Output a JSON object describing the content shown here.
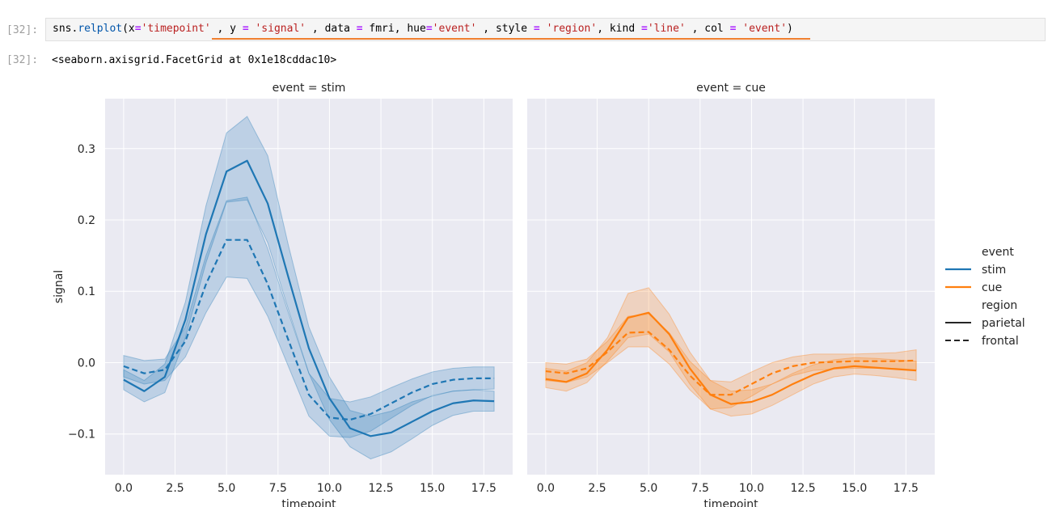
{
  "cell": {
    "in_prompt": "[32]:",
    "code_tokens": [
      {
        "t": "sns",
        "c": "plain"
      },
      {
        "t": ".",
        "c": "plain"
      },
      {
        "t": "relplot",
        "c": "var"
      },
      {
        "t": "(x",
        "c": "plain"
      },
      {
        "t": "=",
        "c": "op"
      },
      {
        "t": "'timepoint'",
        "c": "str"
      },
      {
        "t": " , y ",
        "c": "plain"
      },
      {
        "t": "=",
        "c": "op"
      },
      {
        "t": " ",
        "c": "plain"
      },
      {
        "t": "'signal'",
        "c": "str"
      },
      {
        "t": " , data ",
        "c": "plain"
      },
      {
        "t": "=",
        "c": "op"
      },
      {
        "t": " fmri, hue",
        "c": "plain"
      },
      {
        "t": "=",
        "c": "op"
      },
      {
        "t": "'event'",
        "c": "str"
      },
      {
        "t": " , style ",
        "c": "plain"
      },
      {
        "t": "=",
        "c": "op"
      },
      {
        "t": " ",
        "c": "plain"
      },
      {
        "t": "'region'",
        "c": "str"
      },
      {
        "t": ", kind ",
        "c": "plain"
      },
      {
        "t": "=",
        "c": "op"
      },
      {
        "t": "'line'",
        "c": "str"
      },
      {
        "t": " , col ",
        "c": "plain"
      },
      {
        "t": "=",
        "c": "op"
      },
      {
        "t": " ",
        "c": "plain"
      },
      {
        "t": "'event'",
        "c": "str"
      },
      {
        "t": ")",
        "c": "plain"
      }
    ],
    "out_prompt": "[32]:",
    "output_text": "<seaborn.axisgrid.FacetGrid at 0x1e18cddac10>"
  },
  "colors": {
    "stim": "#1f77b4",
    "cue": "#ff7f0e",
    "axes_bg": "#eaeaf2",
    "grid": "#ffffff"
  },
  "chart_data": [
    {
      "type": "line",
      "title": "event = stim",
      "xlabel": "timepoint",
      "ylabel": "signal",
      "xlim": [
        -0.9,
        18.9
      ],
      "ylim": [
        -0.157,
        0.37
      ],
      "xticks": [
        "0.0",
        "2.5",
        "5.0",
        "7.5",
        "10.0",
        "12.5",
        "15.0",
        "17.5"
      ],
      "yticks": [
        "0.3",
        "0.2",
        "0.1",
        "0.0",
        "−0.1"
      ],
      "grid": true,
      "x": [
        0,
        1,
        2,
        3,
        4,
        5,
        6,
        7,
        8,
        9,
        10,
        11,
        12,
        13,
        14,
        15,
        16,
        17,
        18
      ],
      "series": [
        {
          "event": "stim",
          "region": "parietal",
          "values": [
            -0.024,
            -0.04,
            -0.02,
            0.06,
            0.18,
            0.268,
            0.283,
            0.223,
            0.12,
            0.02,
            -0.05,
            -0.092,
            -0.103,
            -0.098,
            -0.083,
            -0.068,
            -0.057,
            -0.053,
            -0.054
          ],
          "ci_low": [
            -0.038,
            -0.055,
            -0.042,
            0.035,
            0.14,
            0.225,
            0.228,
            0.168,
            0.075,
            -0.015,
            -0.08,
            -0.118,
            -0.135,
            -0.125,
            -0.107,
            -0.088,
            -0.074,
            -0.068,
            -0.068
          ],
          "ci_high": [
            -0.01,
            -0.025,
            -0.002,
            0.085,
            0.22,
            0.322,
            0.345,
            0.29,
            0.165,
            0.05,
            -0.02,
            -0.067,
            -0.075,
            -0.068,
            -0.055,
            -0.047,
            -0.04,
            -0.038,
            -0.04
          ]
        },
        {
          "event": "stim",
          "region": "frontal",
          "values": [
            -0.005,
            -0.015,
            -0.01,
            0.03,
            0.11,
            0.172,
            0.172,
            0.11,
            0.032,
            -0.045,
            -0.077,
            -0.08,
            -0.072,
            -0.057,
            -0.042,
            -0.03,
            -0.024,
            -0.022,
            -0.022
          ],
          "ci_low": [
            -0.02,
            -0.03,
            -0.025,
            0.008,
            0.07,
            0.12,
            0.118,
            0.065,
            -0.005,
            -0.075,
            -0.103,
            -0.105,
            -0.096,
            -0.078,
            -0.06,
            -0.046,
            -0.04,
            -0.038,
            -0.037
          ],
          "ci_high": [
            0.01,
            0.003,
            0.005,
            0.05,
            0.15,
            0.227,
            0.232,
            0.16,
            0.07,
            -0.015,
            -0.05,
            -0.055,
            -0.048,
            -0.035,
            -0.023,
            -0.013,
            -0.008,
            -0.006,
            -0.006
          ]
        }
      ]
    },
    {
      "type": "line",
      "title": "event = cue",
      "xlabel": "timepoint",
      "ylabel": "",
      "xlim": [
        -0.9,
        18.9
      ],
      "ylim": [
        -0.157,
        0.37
      ],
      "xticks": [
        "0.0",
        "2.5",
        "5.0",
        "7.5",
        "10.0",
        "12.5",
        "15.0",
        "17.5"
      ],
      "yticks": [],
      "grid": true,
      "x": [
        0,
        1,
        2,
        3,
        4,
        5,
        6,
        7,
        8,
        9,
        10,
        11,
        12,
        13,
        14,
        15,
        16,
        17,
        18
      ],
      "series": [
        {
          "event": "cue",
          "region": "parietal",
          "values": [
            -0.023,
            -0.027,
            -0.015,
            0.018,
            0.063,
            0.07,
            0.04,
            -0.008,
            -0.045,
            -0.058,
            -0.055,
            -0.045,
            -0.03,
            -0.017,
            -0.008,
            -0.005,
            -0.007,
            -0.009,
            -0.011
          ],
          "ci_low": [
            -0.035,
            -0.04,
            -0.028,
            0.002,
            0.035,
            0.04,
            0.015,
            -0.03,
            -0.065,
            -0.075,
            -0.072,
            -0.06,
            -0.045,
            -0.03,
            -0.02,
            -0.016,
            -0.018,
            -0.021,
            -0.025
          ],
          "ci_high": [
            -0.008,
            -0.012,
            0.0,
            0.035,
            0.097,
            0.105,
            0.068,
            0.015,
            -0.025,
            -0.04,
            -0.038,
            -0.03,
            -0.015,
            -0.003,
            0.004,
            0.007,
            0.006,
            0.004,
            0.002
          ]
        },
        {
          "event": "cue",
          "region": "frontal",
          "values": [
            -0.012,
            -0.015,
            -0.008,
            0.015,
            0.042,
            0.043,
            0.018,
            -0.018,
            -0.045,
            -0.045,
            -0.03,
            -0.015,
            -0.005,
            0.0,
            0.001,
            0.002,
            0.002,
            0.002,
            0.003
          ],
          "ci_low": [
            -0.025,
            -0.028,
            -0.02,
            0.0,
            0.022,
            0.022,
            -0.002,
            -0.038,
            -0.065,
            -0.063,
            -0.047,
            -0.03,
            -0.018,
            -0.011,
            -0.009,
            -0.008,
            -0.008,
            -0.008,
            -0.01
          ],
          "ci_high": [
            0.0,
            -0.002,
            0.005,
            0.03,
            0.065,
            0.068,
            0.042,
            0.002,
            -0.025,
            -0.027,
            -0.013,
            0.0,
            0.008,
            0.012,
            0.012,
            0.012,
            0.013,
            0.014,
            0.018
          ]
        }
      ]
    }
  ],
  "legend": {
    "placement": "right",
    "hue_title": "event",
    "hue_entries": [
      {
        "label": "stim",
        "color": "#1f77b4"
      },
      {
        "label": "cue",
        "color": "#ff7f0e"
      }
    ],
    "style_title": "region",
    "style_entries": [
      {
        "label": "parietal",
        "dash": "solid"
      },
      {
        "label": "frontal",
        "dash": "dashed"
      }
    ]
  }
}
